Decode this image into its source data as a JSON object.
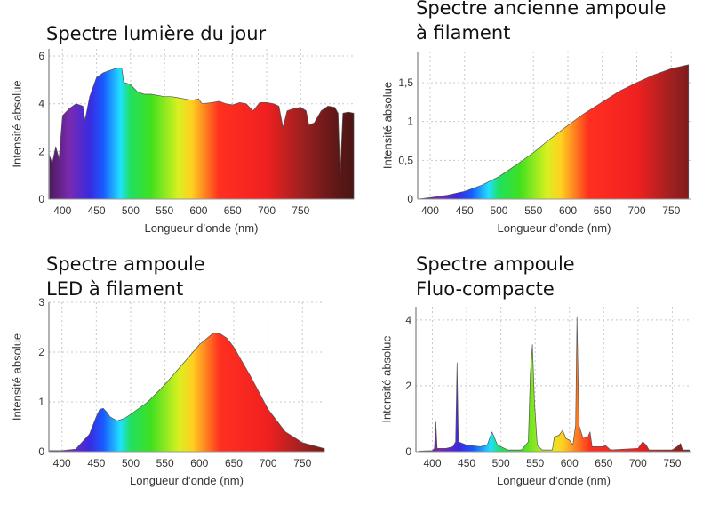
{
  "chart_data": [
    {
      "type": "area",
      "title_lines": [
        "Spectre lumière du jour"
      ],
      "xlabel": "Longueur d’onde (nm)",
      "ylabel": "Intensité absolue",
      "xlim": [
        380,
        828
      ],
      "ylim": [
        0,
        6.3
      ],
      "xticks": [
        400,
        450,
        500,
        550,
        600,
        650,
        700,
        750
      ],
      "xtick_labels": [
        "400",
        "450",
        "500",
        "550",
        "600",
        "650",
        "700",
        "750"
      ],
      "yticks": [
        0,
        2,
        4,
        6
      ],
      "ytick_labels": [
        "0",
        "2",
        "4",
        "6"
      ],
      "grid": true,
      "fill": "spectral",
      "x": [
        380,
        385,
        390,
        395,
        400,
        410,
        420,
        430,
        433,
        440,
        450,
        460,
        470,
        480,
        487,
        490,
        500,
        510,
        520,
        530,
        540,
        550,
        560,
        570,
        580,
        590,
        600,
        605,
        620,
        630,
        640,
        650,
        660,
        670,
        680,
        690,
        700,
        710,
        718,
        724,
        730,
        740,
        750,
        758,
        762,
        770,
        780,
        790,
        800,
        805,
        808,
        812,
        820,
        828
      ],
      "y": [
        1.9,
        1.5,
        2.2,
        1.7,
        3.5,
        3.8,
        4.0,
        3.9,
        3.3,
        4.3,
        5.1,
        5.3,
        5.4,
        5.5,
        5.5,
        4.9,
        4.8,
        4.5,
        4.4,
        4.4,
        4.35,
        4.3,
        4.3,
        4.25,
        4.2,
        4.15,
        4.2,
        4.0,
        4.05,
        4.1,
        4.0,
        3.95,
        4.05,
        4.0,
        3.7,
        4.05,
        4.05,
        4.0,
        3.9,
        3.0,
        3.7,
        3.8,
        3.85,
        3.7,
        3.1,
        3.2,
        3.7,
        3.9,
        3.85,
        3.6,
        1.0,
        3.6,
        3.65,
        3.6
      ]
    },
    {
      "type": "area",
      "title_lines": [
        "Spectre ancienne ampoule",
        "à filament"
      ],
      "xlabel": "Longueur d’onde (nm)",
      "ylabel": "Intensité absolue",
      "xlim": [
        382,
        778
      ],
      "ylim": [
        0,
        1.9
      ],
      "xticks": [
        400,
        450,
        500,
        550,
        600,
        650,
        700,
        750
      ],
      "xtick_labels": [
        "400",
        "450",
        "500",
        "550",
        "600",
        "650",
        "700",
        "750"
      ],
      "yticks": [
        0,
        0.5,
        1,
        1.5
      ],
      "ytick_labels": [
        "0",
        "0,5",
        "1",
        "1,5"
      ],
      "grid": true,
      "fill": "spectral",
      "x": [
        382,
        400,
        425,
        450,
        475,
        500,
        525,
        550,
        575,
        600,
        625,
        650,
        675,
        700,
        725,
        750,
        775
      ],
      "y": [
        0.0,
        0.02,
        0.05,
        0.1,
        0.18,
        0.29,
        0.44,
        0.6,
        0.78,
        0.95,
        1.11,
        1.25,
        1.39,
        1.5,
        1.6,
        1.68,
        1.73
      ]
    },
    {
      "type": "area",
      "title_lines": [
        "Spectre ampoule",
        "LED à filament"
      ],
      "xlabel": "Longueur d’onde (nm)",
      "ylabel": "Intensité absolue",
      "xlim": [
        381,
        782
      ],
      "ylim": [
        0,
        3
      ],
      "xticks": [
        400,
        450,
        500,
        550,
        600,
        650,
        700,
        750
      ],
      "xtick_labels": [
        "400",
        "450",
        "500",
        "550",
        "600",
        "650",
        "700",
        "750"
      ],
      "yticks": [
        0,
        1,
        2,
        3
      ],
      "ytick_labels": [
        "0",
        "1",
        "2",
        "3"
      ],
      "grid": true,
      "fill": "spectral",
      "x": [
        381,
        400,
        420,
        440,
        450,
        455,
        460,
        465,
        470,
        480,
        490,
        500,
        525,
        550,
        575,
        600,
        620,
        630,
        640,
        650,
        675,
        700,
        725,
        750,
        782
      ],
      "y": [
        0.02,
        0.02,
        0.05,
        0.35,
        0.7,
        0.85,
        0.87,
        0.8,
        0.7,
        0.62,
        0.66,
        0.75,
        1.0,
        1.35,
        1.75,
        2.15,
        2.38,
        2.37,
        2.28,
        2.1,
        1.5,
        0.85,
        0.4,
        0.18,
        0.06
      ]
    },
    {
      "type": "area",
      "title_lines": [
        "Spectre ampoule",
        "Fluo-compacte"
      ],
      "xlabel": "Longueur d’onde (nm)",
      "ylabel": "Intensité absolue",
      "xlim": [
        376,
        778
      ],
      "ylim": [
        0,
        4.4
      ],
      "xticks": [
        400,
        450,
        500,
        550,
        600,
        650,
        700,
        750
      ],
      "xtick_labels": [
        "400",
        "450",
        "500",
        "550",
        "600",
        "650",
        "700",
        "750"
      ],
      "yticks": [
        0,
        2,
        4
      ],
      "ytick_labels": [
        "0",
        "2",
        "4"
      ],
      "grid": true,
      "fill": "spectral",
      "x": [
        380,
        400,
        403,
        405,
        407,
        420,
        430,
        434,
        436,
        438,
        450,
        470,
        480,
        487,
        495,
        510,
        530,
        540,
        543,
        546,
        549,
        553,
        560,
        575,
        578,
        585,
        590,
        595,
        600,
        605,
        609,
        611,
        614,
        620,
        627,
        630,
        633,
        650,
        652,
        660,
        700,
        707,
        712,
        716,
        750,
        760,
        762,
        765,
        775
      ],
      "y": [
        0.02,
        0.03,
        0.1,
        0.9,
        0.1,
        0.1,
        0.15,
        0.3,
        2.7,
        0.3,
        0.2,
        0.15,
        0.2,
        0.6,
        0.2,
        0.05,
        0.05,
        0.3,
        2.4,
        3.25,
        1.5,
        0.2,
        0.05,
        0.05,
        0.45,
        0.5,
        0.65,
        0.4,
        0.35,
        0.2,
        0.8,
        4.1,
        0.8,
        0.4,
        0.45,
        0.6,
        0.15,
        0.15,
        0.2,
        0.05,
        0.1,
        0.3,
        0.2,
        0.05,
        0.05,
        0.2,
        0.25,
        0.05,
        0.05
      ]
    }
  ],
  "colors": {
    "grid": "#c8c8c8",
    "axis": "#999999",
    "outline": "#555555",
    "spectrum": [
      [
        380,
        "#4a1a5a"
      ],
      [
        410,
        "#7a2ab0"
      ],
      [
        440,
        "#3a2ae0"
      ],
      [
        460,
        "#1a5aff"
      ],
      [
        485,
        "#20e0ff"
      ],
      [
        500,
        "#20e060"
      ],
      [
        530,
        "#40e020"
      ],
      [
        570,
        "#d8f020"
      ],
      [
        590,
        "#ffd020"
      ],
      [
        610,
        "#ff8020"
      ],
      [
        630,
        "#ff3020"
      ],
      [
        700,
        "#f02020"
      ],
      [
        750,
        "#a02020"
      ],
      [
        800,
        "#601818"
      ],
      [
        830,
        "#4a1414"
      ]
    ]
  }
}
